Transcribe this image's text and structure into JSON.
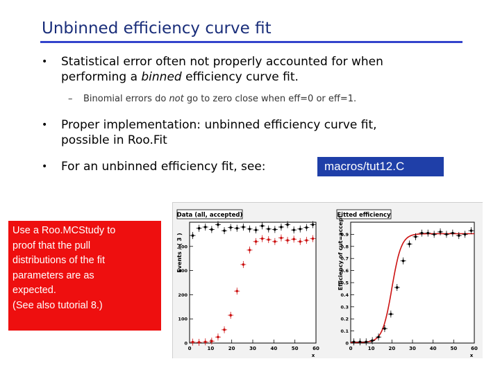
{
  "title": "Unbinned efficiency curve fit",
  "bullets": {
    "b1_line1": "Statistical error often not properly accounted for when",
    "b1_line2_pre": "performing a ",
    "b1_line2_em": "binned",
    "b1_line2_post": " efficiency curve fit.",
    "sub_pre": "Binomial errors do ",
    "sub_em": "not",
    "sub_post": " go to zero close when eff=0 or eff=1.",
    "b2_line1": "Proper implementation: unbinned efficiency curve fit,",
    "b2_line2": "possible in Roo.Fit",
    "b3": "For an unbinned efficiency fit, see:"
  },
  "macro": "macros/tut12.C",
  "note": "Use a Roo.MCStudy to\nproof that the pull\ndistributions of the fit\nparameters are as\nexpected.\n(See also tutorial 8.)",
  "colors": {
    "title": "#1a2e7a",
    "rule": "#3344cc",
    "macro_bg": "#1f3fa8",
    "note_bg": "#ee0f0f",
    "red": "#cc1111"
  },
  "chart_data": [
    {
      "type": "scatter",
      "title": "Data (all, accepted)",
      "ylabel": "Events / ( 3 )",
      "xlabel": "x",
      "xlim": [
        0,
        60
      ],
      "ylim": [
        0,
        500
      ],
      "x_ticks": [
        "0",
        "10",
        "20",
        "30",
        "40",
        "50",
        "60"
      ],
      "y_ticks": [
        "0",
        "100",
        "200",
        "300",
        "400"
      ],
      "series": [
        {
          "color": "#000000",
          "x": [
            1.5,
            4.5,
            7.5,
            10.5,
            13.5,
            16.5,
            19.5,
            22.5,
            25.5,
            28.5,
            31.5,
            34.5,
            37.5,
            40.5,
            43.5,
            46.5,
            49.5,
            52.5,
            55.5,
            58.5
          ],
          "y": [
            445,
            475,
            480,
            470,
            490,
            465,
            478,
            475,
            480,
            472,
            468,
            485,
            472,
            470,
            480,
            490,
            468,
            472,
            478,
            490
          ]
        },
        {
          "color": "#cc1111",
          "x": [
            1.5,
            4.5,
            7.5,
            10.5,
            13.5,
            16.5,
            19.5,
            22.5,
            25.5,
            28.5,
            31.5,
            34.5,
            37.5,
            40.5,
            43.5,
            46.5,
            49.5,
            52.5,
            55.5,
            58.5
          ],
          "y": [
            4,
            3,
            5,
            8,
            25,
            55,
            115,
            215,
            325,
            385,
            420,
            432,
            428,
            420,
            435,
            425,
            430,
            420,
            425,
            432
          ]
        }
      ]
    },
    {
      "type": "scatter",
      "title": "Fitted efficiency",
      "ylabel": "Efficiency of cut=accept",
      "xlabel": "x",
      "xlim": [
        0,
        60
      ],
      "ylim": [
        0,
        1
      ],
      "x_ticks": [
        "0",
        "10",
        "20",
        "30",
        "40",
        "50",
        "60"
      ],
      "y_ticks": [
        "0",
        "0.1",
        "0.2",
        "0.3",
        "0.4",
        "0.5",
        "0.6",
        "0.7",
        "0.8",
        "0.9"
      ],
      "fit_curve": {
        "x0": 20,
        "width": 2.3
      },
      "series": [
        {
          "color": "#000000",
          "x": [
            1.5,
            4.5,
            7.5,
            10.5,
            13.5,
            16.5,
            19.5,
            22.5,
            25.5,
            28.5,
            31.5,
            34.5,
            37.5,
            40.5,
            43.5,
            46.5,
            49.5,
            52.5,
            55.5,
            58.5
          ],
          "y": [
            0.01,
            0.01,
            0.01,
            0.02,
            0.05,
            0.12,
            0.24,
            0.46,
            0.68,
            0.82,
            0.88,
            0.91,
            0.91,
            0.9,
            0.92,
            0.9,
            0.91,
            0.89,
            0.9,
            0.93
          ]
        }
      ]
    }
  ]
}
